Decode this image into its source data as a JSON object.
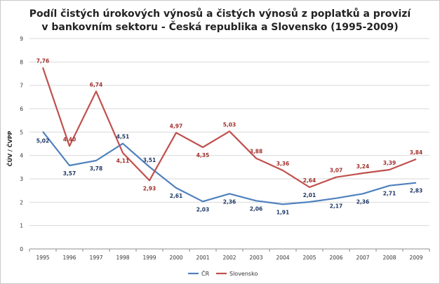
{
  "chart_data": {
    "type": "line",
    "title_lines": [
      "Podíl čistých úrokových výnosů a čistých výnosů z poplatků a provizí",
      "v bankovním sektoru - Česká republika a Slovensko (1995-2009)"
    ],
    "ylabel": "ČÚV / ČVPP",
    "ylim": [
      0,
      9
    ],
    "yticks": [
      "0",
      "1",
      "2",
      "3",
      "4",
      "5",
      "6",
      "7",
      "8",
      "9"
    ],
    "categories": [
      "1995",
      "1996",
      "1997",
      "1998",
      "1999",
      "2000",
      "2001",
      "2002",
      "2003",
      "2004",
      "2005",
      "2006",
      "2007",
      "2008",
      "2009"
    ],
    "grid": true,
    "legend_position": "bottom",
    "series": [
      {
        "name": "ČR",
        "color": "#4f81bd",
        "values": [
          5.02,
          3.57,
          3.78,
          4.51,
          3.51,
          2.61,
          2.03,
          2.36,
          2.06,
          1.91,
          2.01,
          2.17,
          2.36,
          2.71,
          2.83
        ],
        "labels": [
          "5,02",
          "3,57",
          "3,78",
          "4,51",
          "3,51",
          "2,61",
          "2,03",
          "2,36",
          "2,06",
          "1,91",
          "2,01",
          "2,17",
          "2,36",
          "2,71",
          "2,83"
        ]
      },
      {
        "name": "Slovensko",
        "color": "#c0504d",
        "values": [
          7.76,
          4.4,
          6.74,
          4.11,
          2.93,
          4.97,
          4.35,
          5.03,
          3.88,
          3.36,
          2.64,
          3.07,
          3.24,
          3.39,
          3.84
        ],
        "labels": [
          "7,76",
          "4,40",
          "6,74",
          "4,11",
          "2,93",
          "4,97",
          "4,35",
          "5,03",
          "3,88",
          "3,36",
          "2,64",
          "3,07",
          "3,24",
          "3,39",
          "3,84"
        ]
      }
    ]
  }
}
